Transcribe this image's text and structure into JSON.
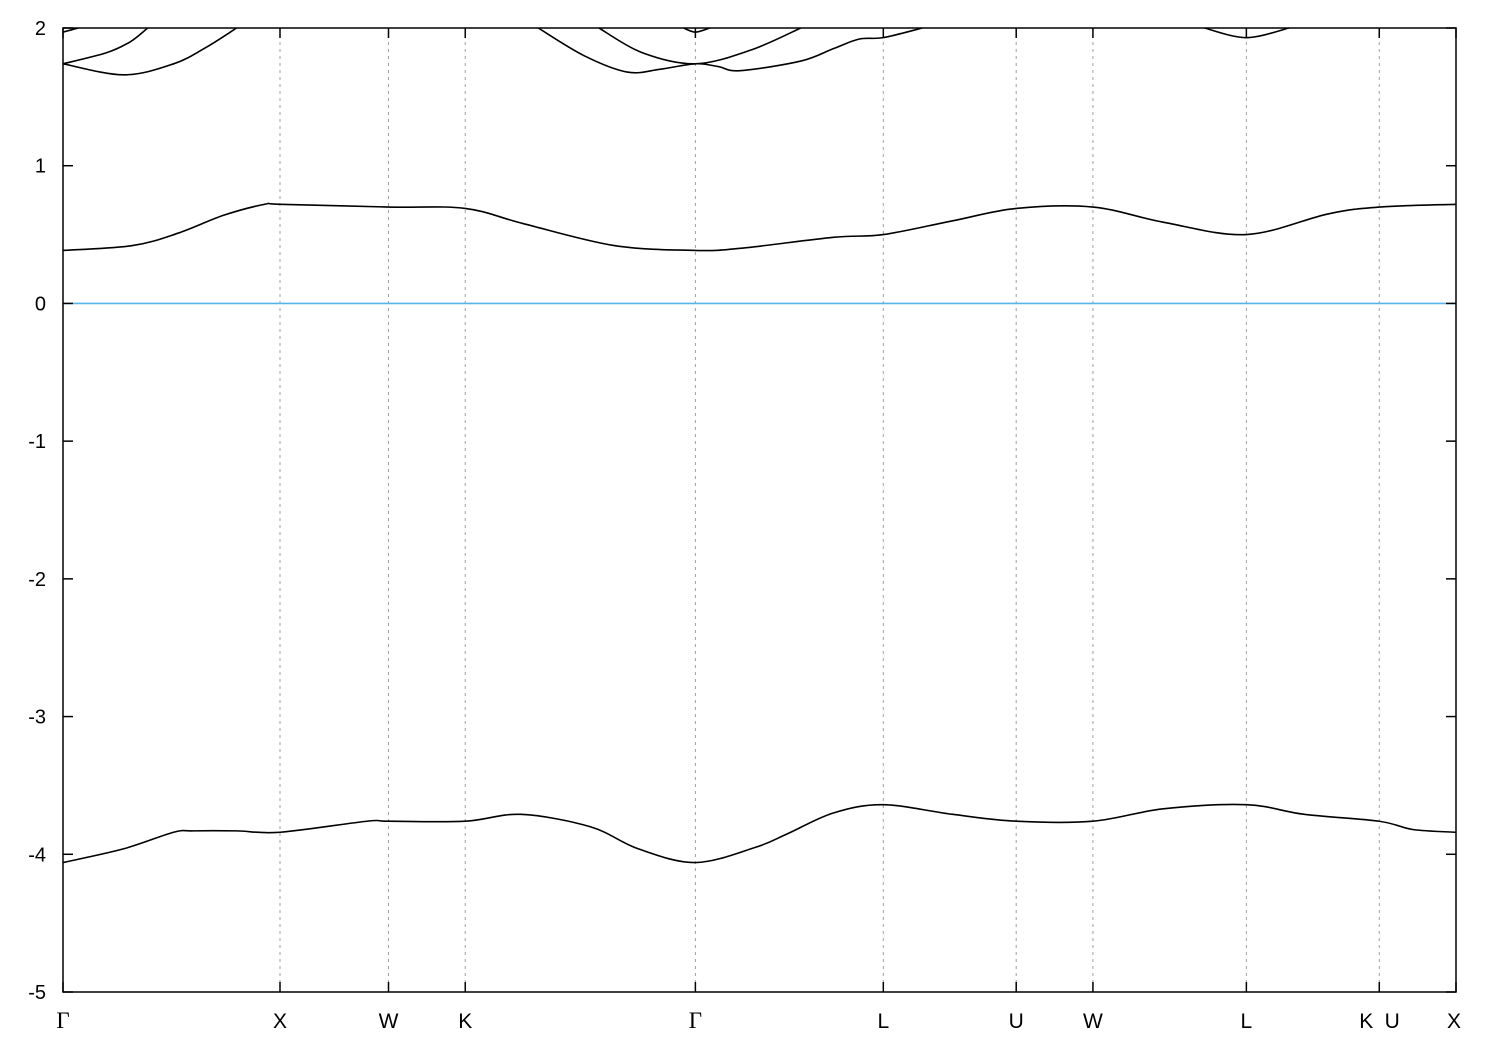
{
  "chart_data": {
    "type": "line",
    "title": "",
    "xlabel": "",
    "ylabel": "",
    "ylim": [
      -5,
      2
    ],
    "xlim": [
      0,
      6.4193
    ],
    "y_ticks": [
      -5,
      -4,
      -3,
      -2,
      -1,
      0,
      1,
      2
    ],
    "x_ticks": [
      {
        "label": "Γ",
        "k": 0
      },
      {
        "label": "X",
        "k": 1.0
      },
      {
        "label": "W",
        "k": 1.5
      },
      {
        "label": "K",
        "k": 1.8536
      },
      {
        "label": "Γ",
        "k": 2.9142
      },
      {
        "label": "L",
        "k": 3.7802
      },
      {
        "label": "U",
        "k": 4.3926
      },
      {
        "label": "W",
        "k": 4.7462
      },
      {
        "label": "L",
        "k": 5.4533
      },
      {
        "label": "K",
        "k": 6.0657
      },
      {
        "label": "U",
        "k": 6.0657
      },
      {
        "label": "X",
        "k": 6.4193
      }
    ],
    "grid": "vertical dashed at high-symmetry points",
    "fermi_level": {
      "value": 0,
      "color": "#56b4e9"
    },
    "band_color": "#000000",
    "bands": [
      {
        "points": [
          [
            0,
            -4.06
          ],
          [
            0.28,
            -3.96
          ],
          [
            0.51,
            -3.84
          ],
          [
            0.6,
            -3.83
          ],
          [
            0.8,
            -3.83
          ],
          [
            1.0,
            -3.84
          ],
          [
            1.4,
            -3.76
          ],
          [
            1.5,
            -3.76
          ],
          [
            1.8536,
            -3.76
          ],
          [
            2.11,
            -3.71
          ],
          [
            2.43,
            -3.8
          ],
          [
            2.65,
            -3.96
          ],
          [
            2.9142,
            -4.06
          ],
          [
            3.19,
            -3.95
          ],
          [
            3.34,
            -3.85
          ],
          [
            3.55,
            -3.7
          ],
          [
            3.7802,
            -3.64
          ],
          [
            4.1,
            -3.71
          ],
          [
            4.3926,
            -3.76
          ],
          [
            4.7462,
            -3.76
          ],
          [
            5.07,
            -3.67
          ],
          [
            5.4533,
            -3.64
          ],
          [
            5.72,
            -3.71
          ],
          [
            6.0657,
            -3.76
          ],
          [
            6.22,
            -3.82
          ],
          [
            6.4193,
            -3.84
          ]
        ]
      },
      {
        "points": [
          [
            0,
            0.385
          ],
          [
            0.32,
            0.42
          ],
          [
            0.53,
            0.51
          ],
          [
            0.74,
            0.64
          ],
          [
            0.93,
            0.72
          ],
          [
            1.0,
            0.72
          ],
          [
            1.5,
            0.7
          ],
          [
            1.8536,
            0.69
          ],
          [
            2.12,
            0.58
          ],
          [
            2.54,
            0.42
          ],
          [
            2.9142,
            0.385
          ],
          [
            3.12,
            0.4
          ],
          [
            3.55,
            0.48
          ],
          [
            3.7802,
            0.5
          ],
          [
            4.1,
            0.6
          ],
          [
            4.3926,
            0.69
          ],
          [
            4.7462,
            0.7
          ],
          [
            5.07,
            0.59
          ],
          [
            5.4533,
            0.5
          ],
          [
            5.83,
            0.65
          ],
          [
            6.0657,
            0.7
          ],
          [
            6.4193,
            0.72
          ]
        ]
      },
      {
        "points": [
          [
            0,
            1.74
          ],
          [
            0.28,
            1.66
          ],
          [
            0.51,
            1.74
          ],
          [
            0.66,
            1.86
          ],
          [
            0.8,
            2.0
          ]
        ]
      },
      {
        "points": [
          [
            0,
            1.74
          ],
          [
            0.2,
            1.82
          ],
          [
            0.31,
            1.9
          ],
          [
            0.39,
            2.0
          ]
        ]
      },
      {
        "points": [
          [
            0,
            1.97
          ],
          [
            0.07,
            2.0
          ]
        ]
      },
      {
        "points": [
          [
            2.19,
            2.0
          ],
          [
            2.4,
            1.8
          ],
          [
            2.6,
            1.68
          ],
          [
            2.75,
            1.7
          ],
          [
            2.9142,
            1.74
          ],
          [
            3.02,
            1.72
          ],
          [
            3.12,
            1.69
          ],
          [
            3.4,
            1.76
          ],
          [
            3.55,
            1.85
          ],
          [
            3.67,
            1.92
          ],
          [
            3.7802,
            1.93
          ],
          [
            3.96,
            2.0
          ]
        ]
      },
      {
        "points": [
          [
            2.47,
            2.0
          ],
          [
            2.67,
            1.82
          ],
          [
            2.9142,
            1.74
          ],
          [
            3.17,
            1.84
          ],
          [
            3.4,
            2.0
          ]
        ]
      },
      {
        "points": [
          [
            2.86,
            2.0
          ],
          [
            2.9142,
            1.97
          ],
          [
            2.98,
            2.0
          ]
        ]
      },
      {
        "points": [
          [
            5.26,
            2.0
          ],
          [
            5.4533,
            1.93
          ],
          [
            5.65,
            2.0
          ]
        ]
      }
    ]
  }
}
